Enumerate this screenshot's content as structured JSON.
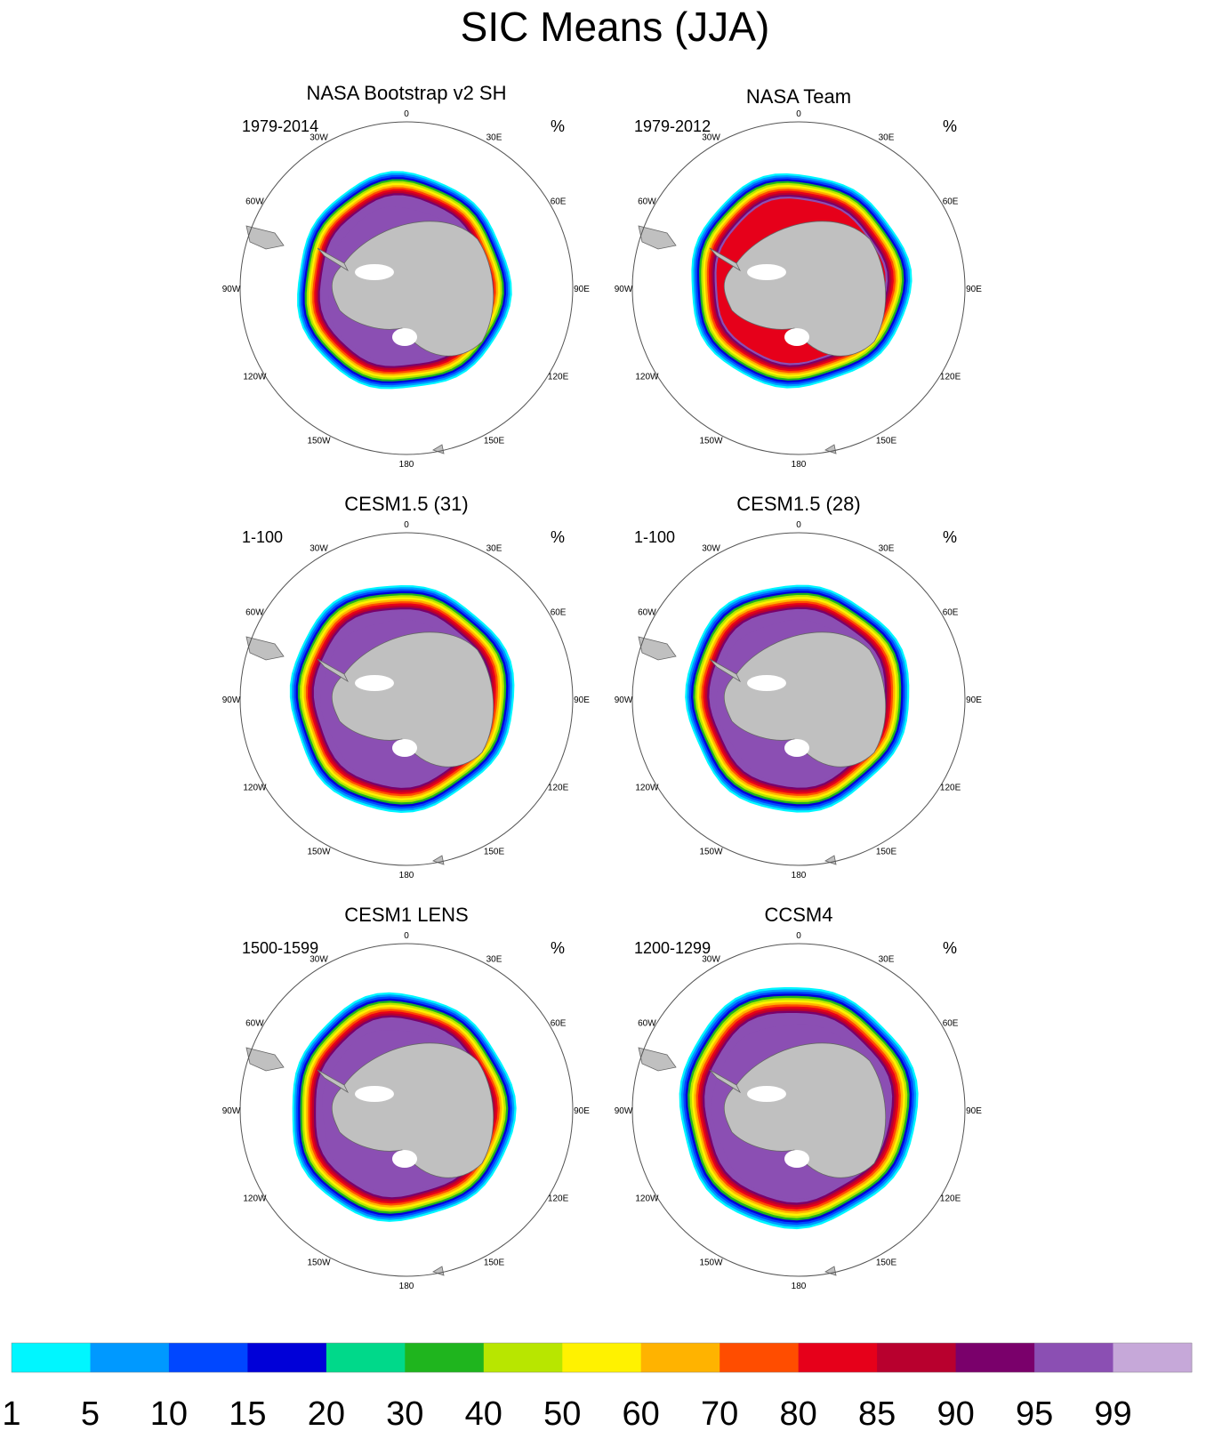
{
  "figure": {
    "title": "SIC Means (JJA)"
  },
  "chart_data": {
    "type": "heatmap",
    "title": "SIC Means (JJA)",
    "unit": "%",
    "projection": "south-polar-stereographic",
    "longitude_labels": [
      "0",
      "30E",
      "60E",
      "90E",
      "120E",
      "150E",
      "180",
      "150W",
      "120W",
      "90W",
      "60W",
      "30W"
    ],
    "colorbar": {
      "levels": [
        "1",
        "5",
        "10",
        "15",
        "20",
        "30",
        "40",
        "50",
        "60",
        "70",
        "80",
        "85",
        "90",
        "95",
        "99"
      ],
      "colors": [
        "#00f6ff",
        "#0099ff",
        "#0047ff",
        "#0000d8",
        "#00d98a",
        "#1fb51e",
        "#b8e600",
        "#fff200",
        "#ffb300",
        "#ff4d00",
        "#e6001a",
        "#b8002e",
        "#7a006b",
        "#8b4fb3",
        "#c6a8d9"
      ]
    },
    "panels": [
      {
        "title": "NASA Bootstrap v2 SH",
        "period": "1979-2014",
        "unit": "%"
      },
      {
        "title": "NASA Team",
        "period": "1979-2012",
        "unit": "%"
      },
      {
        "title": "CESM1.5 (31)",
        "period": "1-100",
        "unit": "%"
      },
      {
        "title": "CESM1.5 (28)",
        "period": "1-100",
        "unit": "%"
      },
      {
        "title": "CESM1 LENS",
        "period": "1500-1599",
        "unit": "%"
      },
      {
        "title": "CCSM4",
        "period": "1200-1299",
        "unit": "%"
      }
    ]
  }
}
